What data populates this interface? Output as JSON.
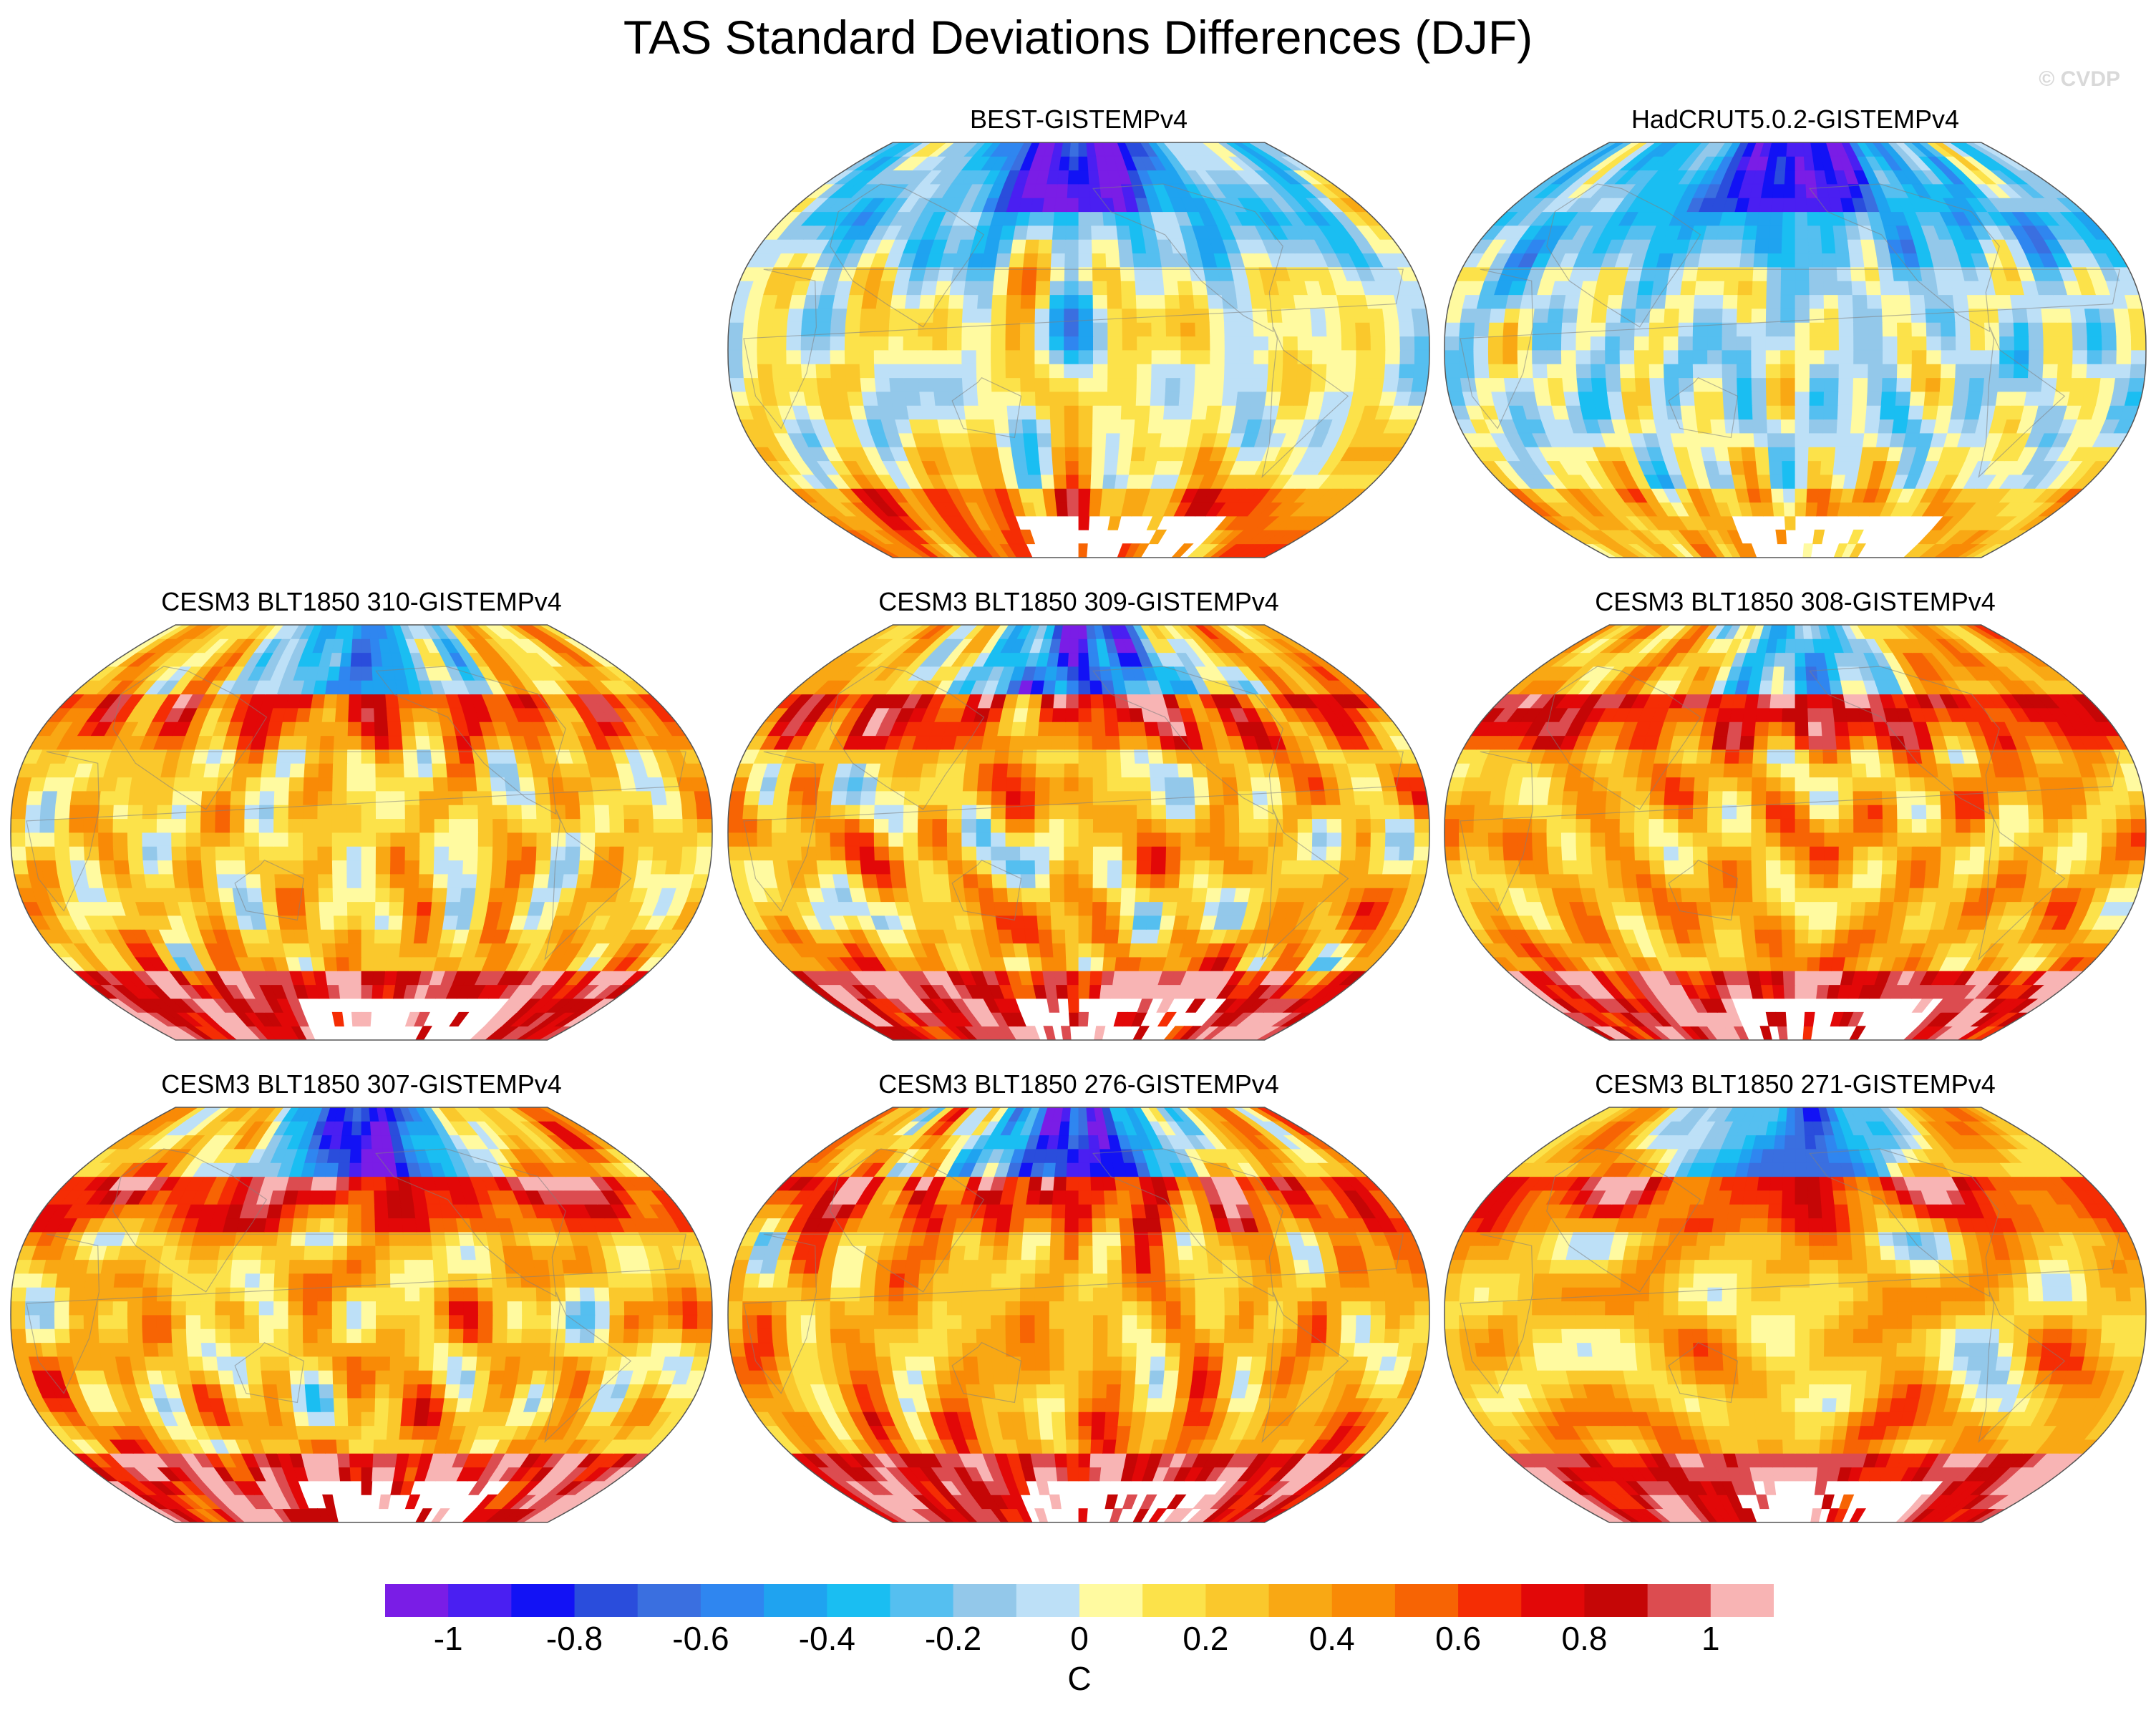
{
  "title": "TAS Standard Deviations Differences (DJF)",
  "watermark": "© CVDP",
  "colors": {
    "levels": [
      "#7a1de6",
      "#4a1ff2",
      "#1212f5",
      "#2a4ddc",
      "#3a6fe0",
      "#2f86f0",
      "#1fa3f0",
      "#1abef2",
      "#55bff0",
      "#93c8ea",
      "#bde0f7",
      "#fffaa0",
      "#fce24a",
      "#fac82c",
      "#f9a814",
      "#f98a06",
      "#f76404",
      "#f52d04",
      "#e20808",
      "#c50606",
      "#dc4c50",
      "#f8b4b4"
    ],
    "land_outline": "#7f7f7f"
  },
  "chart_data": [
    {
      "type": "heatmap",
      "panel": "BEST-GISTEMPv4",
      "title": "BEST-GISTEMPv4",
      "projection": "Robinson",
      "variable": "TAS",
      "season": "DJF",
      "value_range": [
        -1.2,
        1.2
      ],
      "character": {
        "arctic": -1.0,
        "high_lat_nh": -0.3,
        "tropics": 0.05,
        "southern_ocean": 0.15,
        "antarctic": 0.5
      }
    },
    {
      "type": "heatmap",
      "panel": "HadCRUT5.0.2-GISTEMPv4",
      "title": "HadCRUT5.0.2-GISTEMPv4",
      "projection": "Robinson",
      "variable": "TAS",
      "season": "DJF",
      "value_range": [
        -1.2,
        1.2
      ],
      "character": {
        "arctic": -1.0,
        "high_lat_nh": -0.4,
        "tropics": -0.05,
        "southern_ocean": 0.05,
        "antarctic": 0.3
      }
    },
    {
      "type": "heatmap",
      "panel": "CESM3 BLT1850 310-GISTEMPv4",
      "title": "CESM3 BLT1850 310-GISTEMPv4",
      "projection": "Robinson",
      "variable": "TAS",
      "season": "DJF",
      "value_range": [
        -1.2,
        1.2
      ],
      "character": {
        "arctic": -0.5,
        "high_lat_nh": 0.7,
        "tropics": 0.2,
        "southern_ocean": 0.3,
        "antarctic": 0.9
      }
    },
    {
      "type": "heatmap",
      "panel": "CESM3 BLT1850 309-GISTEMPv4",
      "title": "CESM3 BLT1850 309-GISTEMPv4",
      "projection": "Robinson",
      "variable": "TAS",
      "season": "DJF",
      "value_range": [
        -1.2,
        1.2
      ],
      "character": {
        "arctic": -0.8,
        "high_lat_nh": 0.8,
        "tropics": 0.25,
        "southern_ocean": 0.35,
        "antarctic": 0.9
      }
    },
    {
      "type": "heatmap",
      "panel": "CESM3 BLT1850 308-GISTEMPv4",
      "title": "CESM3 BLT1850 308-GISTEMPv4",
      "projection": "Robinson",
      "variable": "TAS",
      "season": "DJF",
      "value_range": [
        -1.2,
        1.2
      ],
      "character": {
        "arctic": -0.3,
        "high_lat_nh": 0.9,
        "tropics": 0.3,
        "southern_ocean": 0.35,
        "antarctic": 0.9
      }
    },
    {
      "type": "heatmap",
      "panel": "CESM3 BLT1850 307-GISTEMPv4",
      "title": "CESM3 BLT1850 307-GISTEMPv4",
      "projection": "Robinson",
      "variable": "TAS",
      "season": "DJF",
      "value_range": [
        -1.2,
        1.2
      ],
      "character": {
        "arctic": -0.9,
        "high_lat_nh": 0.9,
        "tropics": 0.25,
        "southern_ocean": 0.3,
        "antarctic": 0.9
      }
    },
    {
      "type": "heatmap",
      "panel": "CESM3 BLT1850 276-GISTEMPv4",
      "title": "CESM3 BLT1850 276-GISTEMPv4",
      "projection": "Robinson",
      "variable": "TAS",
      "season": "DJF",
      "value_range": [
        -1.2,
        1.2
      ],
      "character": {
        "arctic": -0.9,
        "high_lat_nh": 0.8,
        "tropics": 0.3,
        "southern_ocean": 0.4,
        "antarctic": 0.9
      }
    },
    {
      "type": "heatmap",
      "panel": "CESM3 BLT1850 271-GISTEMPv4",
      "title": "CESM3 BLT1850 271-GISTEMPv4",
      "projection": "Robinson",
      "variable": "TAS",
      "season": "DJF",
      "value_range": [
        -1.2,
        1.2
      ],
      "character": {
        "arctic": -0.7,
        "high_lat_nh": 0.8,
        "tropics": 0.25,
        "southern_ocean": 0.35,
        "antarctic": 0.9
      }
    }
  ],
  "colorbar": {
    "unit": "C",
    "tick_labels": [
      "-1",
      "-0.8",
      "-0.6",
      "-0.4",
      "-0.2",
      "0",
      "0.2",
      "0.4",
      "0.6",
      "0.8",
      "1"
    ],
    "tick_values": [
      -1,
      -0.8,
      -0.6,
      -0.4,
      -0.2,
      0,
      0.2,
      0.4,
      0.6,
      0.8,
      1
    ],
    "range": [
      -1.1,
      1.1
    ]
  }
}
